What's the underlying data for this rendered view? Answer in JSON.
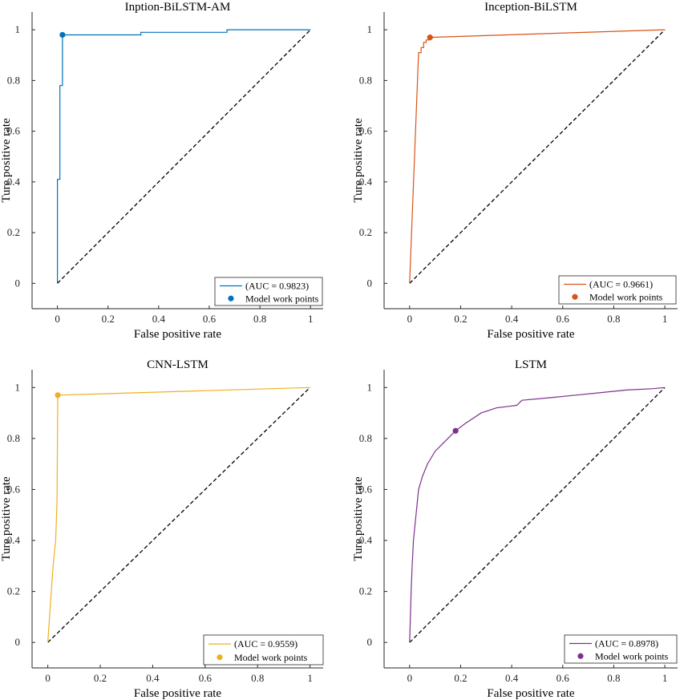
{
  "chart_data": [
    {
      "type": "line",
      "title": "Inption-BiLSTM-AM",
      "xlabel": "False positive rate",
      "ylabel": "Ture positive rate",
      "xlim": [
        -0.1,
        1.05
      ],
      "ylim": [
        -0.1,
        1.07
      ],
      "xticks": [
        0,
        0.2,
        0.4,
        0.6,
        0.8,
        1
      ],
      "xtick_labels": [
        "0",
        "0.2",
        "0.4",
        "0.6",
        "0.8",
        "1"
      ],
      "yticks": [
        0,
        0.2,
        0.4,
        0.6,
        0.8,
        1
      ],
      "ytick_labels": [
        "0",
        "0.2",
        "0.4",
        "0.6",
        "0.8",
        "1"
      ],
      "color": "#0072BD",
      "roc_label": "(AUC = 0.9823)",
      "point_label": "Model work points",
      "roc": [
        [
          0,
          0
        ],
        [
          0,
          0.41
        ],
        [
          0.01,
          0.41
        ],
        [
          0.01,
          0.78
        ],
        [
          0.02,
          0.78
        ],
        [
          0.02,
          0.98
        ],
        [
          0.33,
          0.98
        ],
        [
          0.33,
          0.99
        ],
        [
          0.67,
          0.99
        ],
        [
          0.67,
          1
        ],
        [
          1,
          1
        ]
      ],
      "work_point": [
        0.02,
        0.98
      ]
    },
    {
      "type": "line",
      "title": "Inception-BiLSTM",
      "xlabel": "False positive rate",
      "ylabel": "Ture positive rate",
      "xlim": [
        -0.1,
        1.05
      ],
      "ylim": [
        -0.1,
        1.07
      ],
      "xticks": [
        0,
        0.2,
        0.4,
        0.6,
        0.8,
        1
      ],
      "xtick_labels": [
        "0",
        "0.2",
        "0.4",
        "0.6",
        "0.8",
        "1"
      ],
      "yticks": [
        0,
        0.2,
        0.4,
        0.6,
        0.8,
        1
      ],
      "ytick_labels": [
        "0",
        "0.2",
        "0.4",
        "0.6",
        "0.8",
        "1"
      ],
      "color": "#D95319",
      "roc_label": "(AUC = 0.9661)",
      "point_label": "Model work points",
      "roc": [
        [
          0,
          0
        ],
        [
          0.035,
          0.91
        ],
        [
          0.045,
          0.91
        ],
        [
          0.045,
          0.93
        ],
        [
          0.055,
          0.93
        ],
        [
          0.055,
          0.95
        ],
        [
          0.065,
          0.95
        ],
        [
          0.065,
          0.96
        ],
        [
          0.08,
          0.96
        ],
        [
          0.08,
          0.97
        ],
        [
          1,
          1
        ]
      ],
      "work_point": [
        0.08,
        0.97
      ]
    },
    {
      "type": "line",
      "title": "CNN-LSTM",
      "xlabel": "False positive rate",
      "ylabel": "Ture positive rate",
      "xlim": [
        -0.06,
        1.05
      ],
      "ylim": [
        -0.1,
        1.07
      ],
      "xticks": [
        0,
        0.2,
        0.4,
        0.6,
        0.8,
        1
      ],
      "xtick_labels": [
        "0",
        "0.2",
        "0.4",
        "0.6",
        "0.8",
        "1"
      ],
      "yticks": [
        0,
        0.2,
        0.4,
        0.6,
        0.8,
        1
      ],
      "ytick_labels": [
        "0",
        "0.2",
        "0.4",
        "0.6",
        "0.8",
        "1"
      ],
      "color": "#EDB120",
      "roc_label": "(AUC = 0.9559)",
      "point_label": "Model work points",
      "roc": [
        [
          0,
          0
        ],
        [
          0.02,
          0.3
        ],
        [
          0.03,
          0.4
        ],
        [
          0.035,
          0.55
        ],
        [
          0.038,
          0.97
        ],
        [
          1,
          1
        ]
      ],
      "work_point": [
        0.038,
        0.97
      ]
    },
    {
      "type": "line",
      "title": "LSTM",
      "xlabel": "False positive rate",
      "ylabel": "Ture positive rate",
      "xlim": [
        -0.1,
        1.05
      ],
      "ylim": [
        -0.1,
        1.07
      ],
      "xticks": [
        0,
        0.2,
        0.4,
        0.6,
        0.8,
        1
      ],
      "xtick_labels": [
        "0",
        "0.2",
        "0.4",
        "0.6",
        "0.8",
        "1"
      ],
      "yticks": [
        0,
        0.2,
        0.4,
        0.6,
        0.8,
        1
      ],
      "ytick_labels": [
        "0",
        "0.2",
        "0.4",
        "0.6",
        "0.8",
        "1"
      ],
      "color": "#7E2F8E",
      "roc_label": "(AUC = 0.8978)",
      "point_label": "Model work points",
      "roc": [
        [
          0,
          0
        ],
        [
          0.003,
          0.1
        ],
        [
          0.006,
          0.2
        ],
        [
          0.01,
          0.3
        ],
        [
          0.015,
          0.4
        ],
        [
          0.025,
          0.5
        ],
        [
          0.035,
          0.6
        ],
        [
          0.05,
          0.65
        ],
        [
          0.07,
          0.7
        ],
        [
          0.1,
          0.75
        ],
        [
          0.13,
          0.78
        ],
        [
          0.15,
          0.8
        ],
        [
          0.18,
          0.83
        ],
        [
          0.22,
          0.86
        ],
        [
          0.28,
          0.9
        ],
        [
          0.34,
          0.92
        ],
        [
          0.42,
          0.93
        ],
        [
          0.44,
          0.95
        ],
        [
          0.55,
          0.96
        ],
        [
          0.65,
          0.97
        ],
        [
          0.75,
          0.98
        ],
        [
          0.85,
          0.99
        ],
        [
          0.95,
          0.995
        ],
        [
          1,
          1
        ]
      ],
      "work_point": [
        0.18,
        0.83
      ]
    }
  ]
}
